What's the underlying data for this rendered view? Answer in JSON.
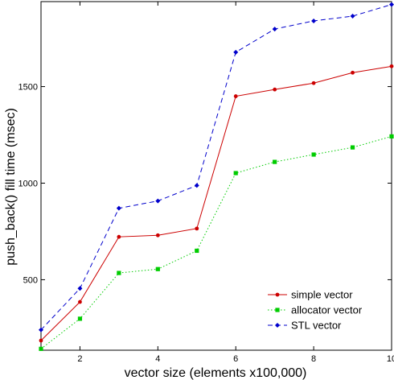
{
  "chart_data": {
    "type": "line",
    "title": "",
    "xlabel": "vector size (elements x100,000)",
    "ylabel": "push_back() fill time (msec)",
    "x": [
      1,
      2,
      3,
      4,
      5,
      6,
      7,
      8,
      9,
      10
    ],
    "xlim": [
      1,
      10
    ],
    "ylim": [
      135,
      1940
    ],
    "xticks": [
      2,
      4,
      6,
      8,
      10
    ],
    "yticks": [
      500,
      1000,
      1500
    ],
    "grid": false,
    "legend_position": "bottom-right",
    "series": [
      {
        "name": "simple vector",
        "color": "#cc0000",
        "line_style": "solid",
        "marker": "circle",
        "values": [
          185,
          385,
          722,
          730,
          765,
          1450,
          1485,
          1518,
          1572,
          1605
        ]
      },
      {
        "name": "allocator vector",
        "color": "#00cc00",
        "line_style": "dotted",
        "marker": "square",
        "values": [
          142,
          298,
          535,
          555,
          650,
          1052,
          1110,
          1148,
          1185,
          1242
        ]
      },
      {
        "name": "STL vector",
        "color": "#0000cc",
        "line_style": "dashed",
        "marker": "diamond",
        "values": [
          240,
          455,
          870,
          908,
          988,
          1678,
          1798,
          1840,
          1865,
          1925
        ]
      }
    ]
  }
}
